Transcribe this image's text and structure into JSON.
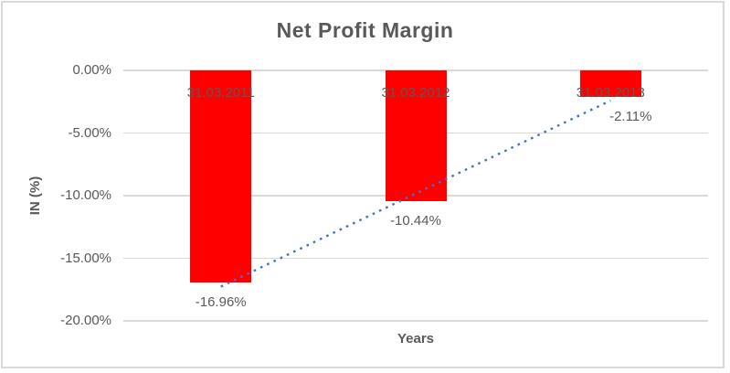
{
  "chart_data": {
    "type": "bar",
    "title": "Net Profit Margin",
    "xlabel": "Years",
    "ylabel": "IN (%)",
    "categories": [
      "31.03.2011",
      "31.03.2012",
      "31.03.2013"
    ],
    "values": [
      -16.96,
      -10.44,
      -2.11
    ],
    "value_labels": [
      "-16.96%",
      "-10.44%",
      "-2.11%"
    ],
    "ylim": [
      0,
      -20
    ],
    "yticks": [
      0,
      -5,
      -10,
      -15,
      -20
    ],
    "ytick_labels": [
      "0.00%",
      "-5.00%",
      "-10.00%",
      "-15.00%",
      "-20.00%"
    ],
    "grid": true,
    "legend": "none",
    "trendline": {
      "type": "linear",
      "style": "dotted",
      "color": "#4472C4"
    },
    "colors": {
      "bar": "#FF0000",
      "text": "#595959",
      "gridline": "#D9D9D9",
      "border": "#D9D9D9"
    },
    "value_label_dx": [
      0,
      0,
      22
    ]
  }
}
